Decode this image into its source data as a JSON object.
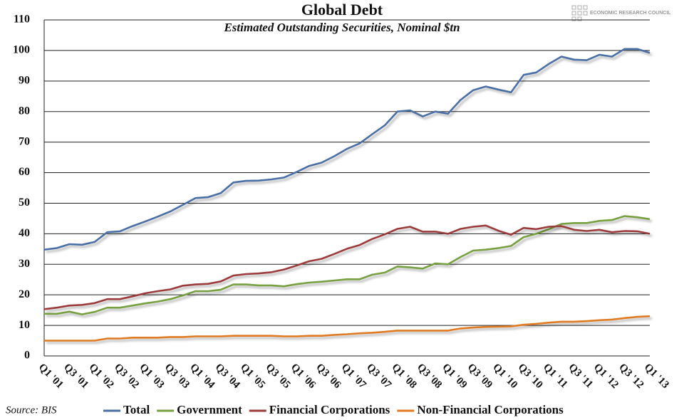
{
  "chart_data": {
    "type": "line",
    "title": "Global Debt",
    "subtitle": "Estimated Outstanding Securities, Nominal $tn",
    "source": "Source: BIS",
    "logo_text": "ECONOMIC RESEARCH COUNCIL",
    "categories": [
      "Q1 '01",
      null,
      "Q3 '01",
      null,
      "Q1 '02",
      null,
      "Q3 '02",
      null,
      "Q1 '03",
      null,
      "Q3 '03",
      null,
      "Q1 '04",
      null,
      "Q3 '04",
      null,
      "Q1 '05",
      null,
      "Q3 '05",
      null,
      "Q1 '06",
      null,
      "Q3 '06",
      null,
      "Q1 '07",
      null,
      "Q3 '07",
      null,
      "Q1 '08",
      null,
      "Q3 '08",
      null,
      "Q1 '09",
      null,
      "Q3 '09",
      null,
      "Q1 '10",
      null,
      "Q3 '10",
      null,
      "Q1 '11",
      null,
      "Q3 '11",
      null,
      "Q1 '12",
      null,
      "Q3 '12",
      null,
      "Q1 '13"
    ],
    "series": [
      {
        "name": "Total",
        "color": "#4a6fa5",
        "values": [
          34.8,
          35.3,
          36.6,
          36.4,
          37.3,
          40.5,
          40.8,
          42.5,
          44.0,
          45.6,
          47.3,
          49.5,
          51.7,
          52.0,
          53.3,
          56.8,
          57.3,
          57.4,
          57.8,
          58.4,
          60.2,
          62.2,
          63.3,
          65.4,
          67.8,
          69.6,
          72.6,
          75.5,
          80.0,
          80.4,
          78.4,
          80.0,
          79.3,
          83.8,
          87.0,
          88.2,
          87.2,
          86.3,
          92.0,
          92.8,
          95.6,
          98.0,
          97.0,
          96.8,
          98.6,
          98.0,
          100.5,
          100.5,
          99.2
        ]
      },
      {
        "name": "Government",
        "color": "#77a041",
        "values": [
          13.8,
          13.8,
          14.5,
          13.6,
          14.4,
          15.8,
          15.8,
          16.5,
          17.2,
          17.8,
          18.6,
          19.8,
          21.2,
          21.2,
          21.7,
          23.4,
          23.4,
          23.1,
          23.1,
          22.8,
          23.5,
          24.0,
          24.3,
          24.7,
          25.1,
          25.1,
          26.6,
          27.3,
          29.3,
          29.0,
          28.6,
          30.3,
          30.0,
          32.4,
          34.5,
          34.8,
          35.3,
          36.0,
          38.9,
          40.0,
          41.5,
          43.2,
          43.5,
          43.5,
          44.2,
          44.5,
          45.8,
          45.4,
          44.8
        ]
      },
      {
        "name": "Financial Corporations",
        "color": "#9b3b3b",
        "values": [
          15.3,
          15.8,
          16.5,
          16.7,
          17.3,
          18.6,
          18.6,
          19.5,
          20.5,
          21.2,
          21.8,
          23.0,
          23.4,
          23.6,
          24.4,
          26.3,
          26.8,
          27.0,
          27.4,
          28.3,
          29.6,
          31.0,
          31.8,
          33.4,
          35.1,
          36.3,
          38.3,
          39.8,
          41.6,
          42.3,
          40.7,
          40.7,
          40.0,
          41.6,
          42.3,
          42.7,
          41.0,
          39.7,
          41.9,
          41.5,
          42.3,
          42.5,
          41.3,
          40.9,
          41.3,
          40.5,
          40.9,
          40.8,
          40.0
        ]
      },
      {
        "name": "Non-Financial Corporations",
        "color": "#e07b22",
        "values": [
          5.0,
          5.0,
          5.0,
          5.0,
          5.0,
          5.7,
          5.7,
          6.0,
          6.0,
          6.0,
          6.2,
          6.2,
          6.4,
          6.4,
          6.4,
          6.6,
          6.6,
          6.6,
          6.6,
          6.4,
          6.4,
          6.6,
          6.6,
          6.9,
          7.1,
          7.4,
          7.6,
          7.9,
          8.3,
          8.3,
          8.3,
          8.3,
          8.3,
          9.0,
          9.3,
          9.5,
          9.6,
          9.7,
          10.2,
          10.5,
          10.9,
          11.2,
          11.2,
          11.4,
          11.7,
          11.9,
          12.4,
          12.8,
          13.0
        ]
      }
    ],
    "ylim": [
      0,
      110
    ],
    "yticks": [
      0,
      10,
      20,
      30,
      40,
      50,
      60,
      70,
      80,
      90,
      100,
      110
    ],
    "grid": true
  }
}
